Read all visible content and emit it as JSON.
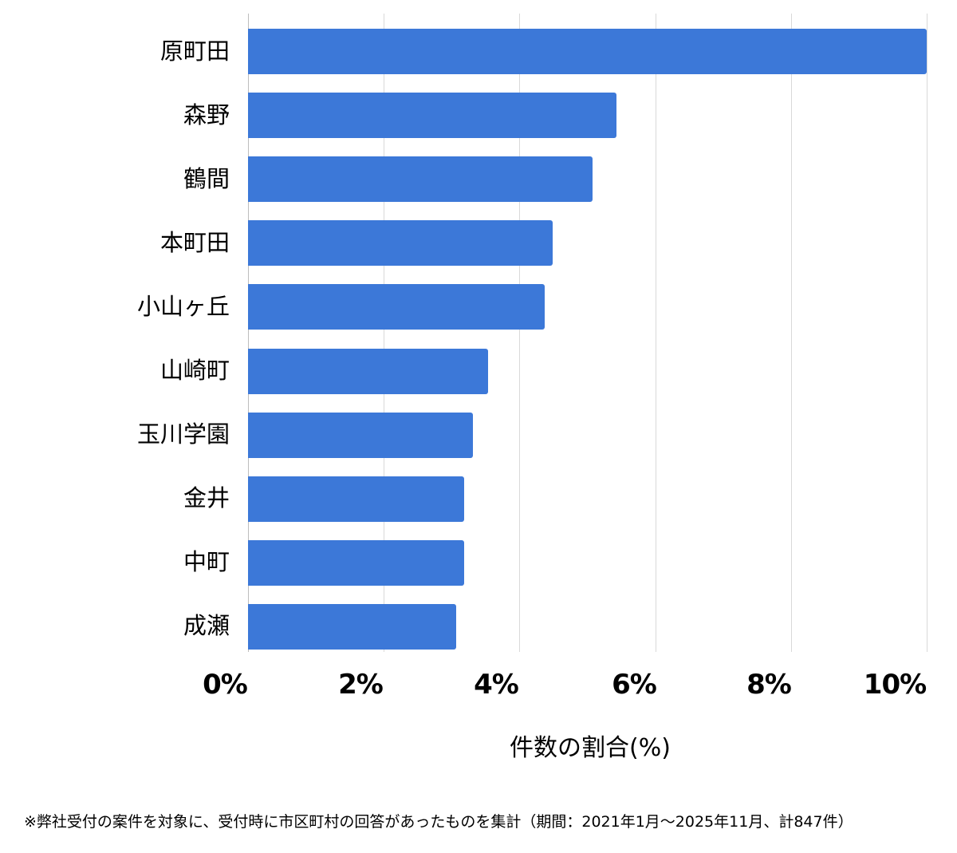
{
  "chart_data": {
    "type": "bar",
    "orientation": "horizontal",
    "title": "",
    "categories": [
      "原町田",
      "森野",
      "鶴間",
      "本町田",
      "小山ヶ丘",
      "山崎町",
      "玉川学園",
      "金井",
      "中町",
      "成瀬"
    ],
    "values": [
      10.04,
      5.43,
      5.08,
      4.49,
      4.37,
      3.54,
      3.31,
      3.19,
      3.19,
      3.07
    ],
    "xlabel": "件数の割合(%)",
    "ylabel": "",
    "xlim": [
      0,
      10
    ],
    "x_ticks": [
      "0%",
      "2%",
      "4%",
      "6%",
      "8%",
      "10%"
    ],
    "grid": true,
    "legend": null,
    "bar_color": "#3c78d8"
  },
  "labels": {
    "c0": "原町田",
    "c1": "森野",
    "c2": "鶴間",
    "c3": "本町田",
    "c4": "小山ヶ丘",
    "c5": "山崎町",
    "c6": "玉川学園",
    "c7": "金井",
    "c8": "中町",
    "c9": "成瀬"
  },
  "ticks": {
    "t0": "0%",
    "t2": "2%",
    "t4": "4%",
    "t6": "6%",
    "t8": "8%",
    "t10": "10%"
  },
  "axis": {
    "xlabel": "件数の割合(%)"
  },
  "footnote": "※弊社受付の案件を対象に、受付時に市区町村の回答があったものを集計（期間：2021年1月～2025年11月、計847件）"
}
